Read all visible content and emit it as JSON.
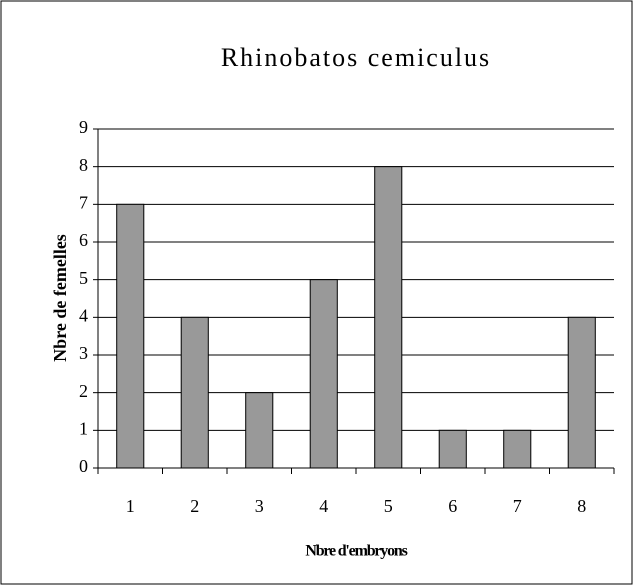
{
  "chart_data": {
    "type": "bar",
    "title": "Rhinobatos cemiculus",
    "x_label": "Nbre d'embryons",
    "y_label": "Nbre de femelles",
    "categories": [
      "1",
      "2",
      "3",
      "4",
      "5",
      "6",
      "7",
      "8"
    ],
    "values": [
      7,
      4,
      2,
      5,
      8,
      1,
      1,
      4
    ],
    "color": "#999999",
    "ylim": [
      0,
      9
    ],
    "yticks": [
      0,
      1,
      2,
      3,
      4,
      5,
      6,
      7,
      8,
      9
    ],
    "grid": true
  }
}
